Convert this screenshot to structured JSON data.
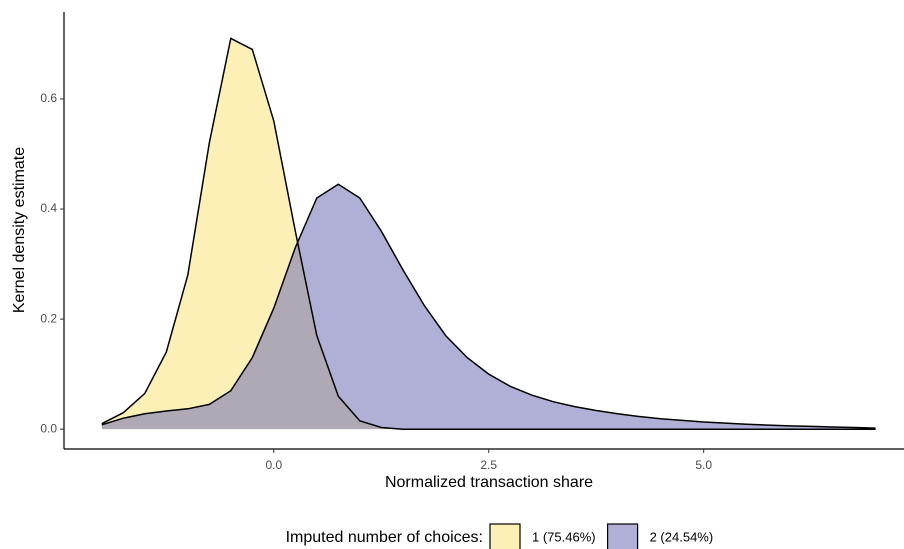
{
  "chart_data": {
    "type": "density",
    "xlabel": "Normalized transaction share",
    "ylabel": "Kernel density estimate",
    "legend_title": "Imputed number of choices:",
    "legend_position": "bottom",
    "x": [
      -2,
      -1.75,
      -1.5,
      -1.25,
      -1,
      -0.75,
      -0.5,
      -0.25,
      0,
      0.25,
      0.5,
      0.75,
      1,
      1.25,
      1.5,
      1.75,
      2,
      2.25,
      2.5,
      2.75,
      3,
      3.25,
      3.5,
      3.75,
      4,
      4.25,
      4.5,
      4.75,
      5,
      5.25,
      5.5,
      5.75,
      6,
      6.25,
      6.5,
      6.75,
      7
    ],
    "series": [
      {
        "name": "1 (75.46%)",
        "color": "#fce37a",
        "values": [
          0.01,
          0.03,
          0.065,
          0.14,
          0.28,
          0.52,
          0.71,
          0.69,
          0.56,
          0.36,
          0.17,
          0.06,
          0.015,
          0.003,
          0,
          0,
          0,
          0,
          0,
          0,
          0,
          0,
          0,
          0,
          0,
          0,
          0,
          0,
          0,
          0,
          0,
          0,
          0,
          0,
          0,
          0,
          0
        ]
      },
      {
        "name": "2 (24.54%)",
        "color": "#6f6fb5",
        "values": [
          0.008,
          0.02,
          0.028,
          0.033,
          0.037,
          0.045,
          0.07,
          0.13,
          0.22,
          0.33,
          0.42,
          0.445,
          0.42,
          0.36,
          0.29,
          0.225,
          0.17,
          0.13,
          0.1,
          0.078,
          0.062,
          0.05,
          0.041,
          0.034,
          0.028,
          0.023,
          0.019,
          0.016,
          0.013,
          0.011,
          0.009,
          0.0075,
          0.006,
          0.005,
          0.004,
          0.003,
          0.002
        ]
      }
    ],
    "xlim": [
      -2.44,
      7.33
    ],
    "ylim": [
      -0.036,
      0.758
    ],
    "xticks": [
      {
        "value": 0,
        "label": "0.0"
      },
      2.5,
      {
        "value": 5,
        "label": "5.0"
      }
    ],
    "yticks": [
      {
        "value": 0,
        "label": "0.0"
      },
      0.2,
      0.4,
      0.6
    ],
    "grid": false
  }
}
